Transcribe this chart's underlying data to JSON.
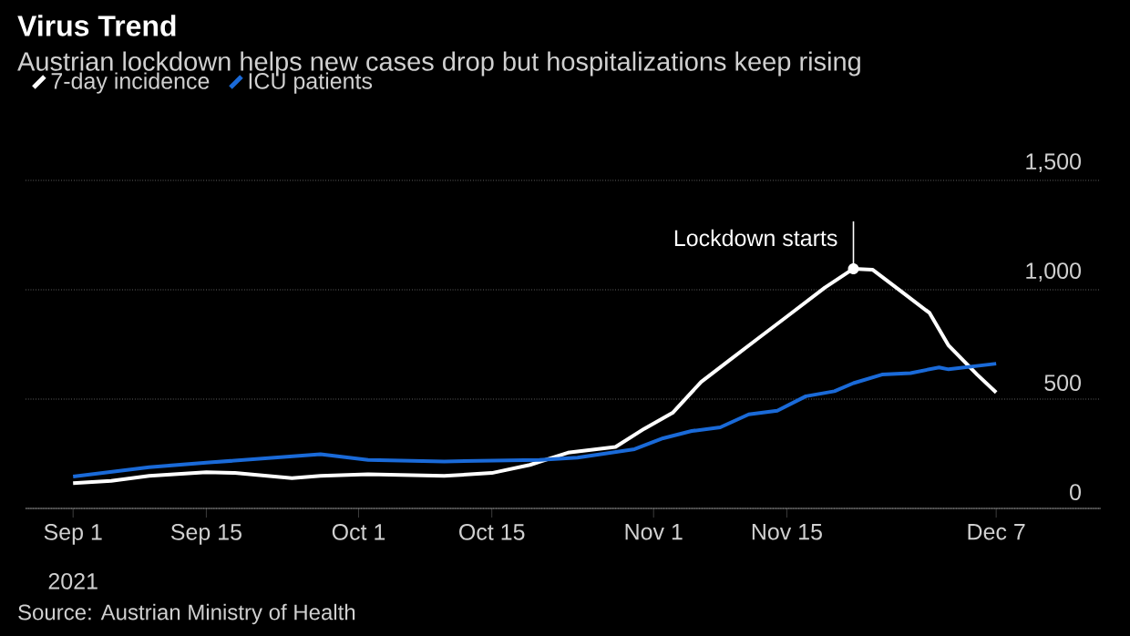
{
  "chart_data": {
    "type": "line",
    "title": "Virus Trend",
    "subtitle": "Austrian lockdown helps new cases drop but hospitalizations keep rising",
    "series": [
      {
        "name": "7-day incidence",
        "color": "#ffffff",
        "x": [
          "2021-09-01",
          "2021-09-05",
          "2021-09-09",
          "2021-09-15",
          "2021-09-18",
          "2021-09-24",
          "2021-09-27",
          "2021-10-02",
          "2021-10-10",
          "2021-10-15",
          "2021-10-19",
          "2021-10-23",
          "2021-10-28",
          "2021-10-31",
          "2021-11-03",
          "2021-11-06",
          "2021-11-09",
          "2021-11-12",
          "2021-11-15",
          "2021-11-19",
          "2021-11-22",
          "2021-11-24",
          "2021-11-27",
          "2021-11-30",
          "2021-12-02",
          "2021-12-05",
          "2021-12-07"
        ],
        "values": [
          116,
          126,
          149,
          166,
          162,
          139,
          149,
          156,
          149,
          162,
          199,
          255,
          281,
          364,
          437,
          579,
          679,
          778,
          877,
          1010,
          1096,
          1092,
          993,
          894,
          745,
          612,
          530
        ]
      },
      {
        "name": "ICU patients",
        "color": "#1a6ad8",
        "x": [
          "2021-09-01",
          "2021-09-09",
          "2021-09-15",
          "2021-09-27",
          "2021-10-02",
          "2021-10-10",
          "2021-10-20",
          "2021-10-24",
          "2021-10-30",
          "2021-11-02",
          "2021-11-05",
          "2021-11-08",
          "2021-11-11",
          "2021-11-14",
          "2021-11-17",
          "2021-11-20",
          "2021-11-22",
          "2021-11-25",
          "2021-11-28",
          "2021-12-01",
          "2021-12-02",
          "2021-12-07"
        ],
        "values": [
          146,
          189,
          209,
          248,
          222,
          215,
          222,
          232,
          271,
          321,
          354,
          371,
          430,
          447,
          513,
          536,
          573,
          612,
          619,
          645,
          636,
          662
        ]
      }
    ],
    "xlim": [
      "2021-08-27",
      "2021-12-18"
    ],
    "xticks": [
      {
        "value": "2021-09-01",
        "label": "Sep 1"
      },
      {
        "value": "2021-09-15",
        "label": "Sep 15"
      },
      {
        "value": "2021-10-01",
        "label": "Oct 1"
      },
      {
        "value": "2021-10-15",
        "label": "Oct 15"
      },
      {
        "value": "2021-11-01",
        "label": "Nov 1"
      },
      {
        "value": "2021-11-15",
        "label": "Nov 15"
      },
      {
        "value": "2021-12-07",
        "label": "Dec 7"
      }
    ],
    "ylim": [
      0,
      1500
    ],
    "yticks": [
      0,
      500,
      {
        "value": 1000,
        "label": "1,000"
      },
      {
        "value": 1500,
        "label": "1,500"
      }
    ],
    "grid": "y",
    "legend": "top left",
    "annotations": [
      {
        "text": "Lockdown starts",
        "x": "2021-11-22",
        "y": 1096
      },
      "2021",
      "Source: Austrian Ministry of Health"
    ]
  }
}
